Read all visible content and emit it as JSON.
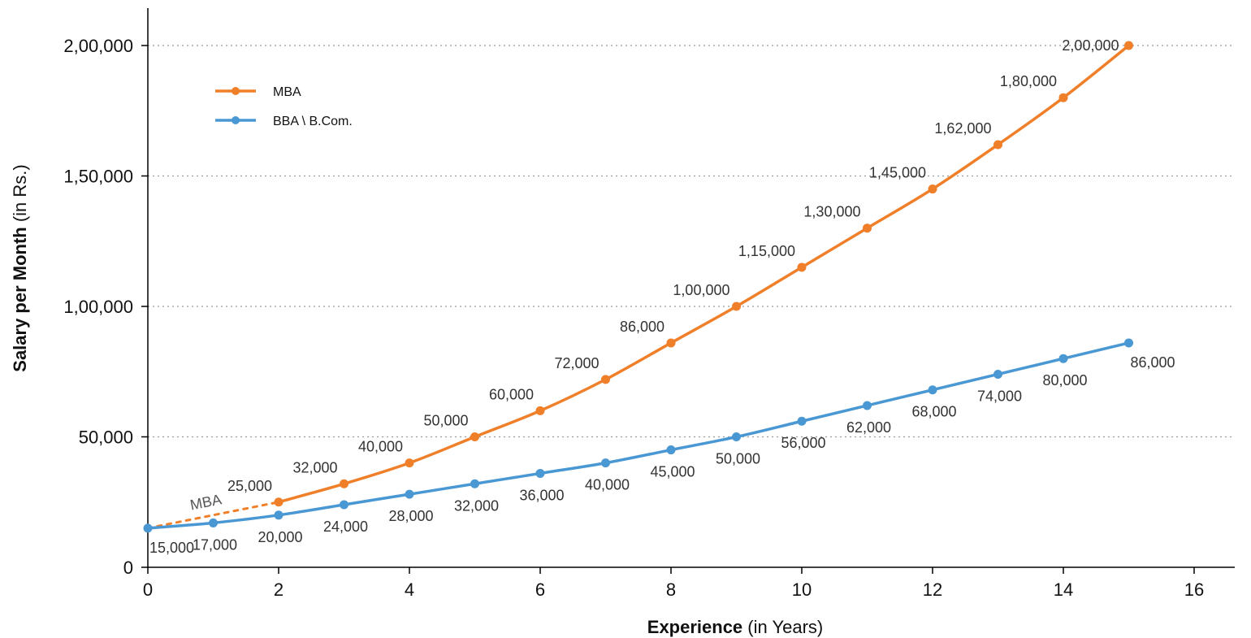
{
  "chart_data": {
    "type": "line",
    "xlabel": {
      "bold": "Experience",
      "rest": " (in Years)"
    },
    "ylabel": {
      "bold": "Salary per Month",
      "rest": " (in Rs.)"
    },
    "xlim": [
      0,
      16
    ],
    "ylim": [
      0,
      200000
    ],
    "x_ticks": [
      {
        "value": 0,
        "label": "0"
      },
      {
        "value": 2,
        "label": "2"
      },
      {
        "value": 4,
        "label": "4"
      },
      {
        "value": 6,
        "label": "6"
      },
      {
        "value": 8,
        "label": "8"
      },
      {
        "value": 10,
        "label": "10"
      },
      {
        "value": 12,
        "label": "12"
      },
      {
        "value": 14,
        "label": "14"
      },
      {
        "value": 16,
        "label": "16"
      }
    ],
    "y_ticks": [
      {
        "value": 0,
        "label": "0"
      },
      {
        "value": 50000,
        "label": "50,000"
      },
      {
        "value": 100000,
        "label": "1,00,000"
      },
      {
        "value": 150000,
        "label": "1,50,000"
      },
      {
        "value": 200000,
        "label": "2,00,000"
      }
    ],
    "grid": "horizontal dotted",
    "legend_position": "top-left",
    "series": [
      {
        "name": "MBA",
        "color": "#f07f2a",
        "label_side": "above",
        "points": [
          {
            "x": 2,
            "y": 25000,
            "label": "25,000"
          },
          {
            "x": 3,
            "y": 32000,
            "label": "32,000"
          },
          {
            "x": 4,
            "y": 40000,
            "label": "40,000"
          },
          {
            "x": 5,
            "y": 50000,
            "label": "50,000"
          },
          {
            "x": 6,
            "y": 60000,
            "label": "60,000"
          },
          {
            "x": 7,
            "y": 72000,
            "label": "72,000"
          },
          {
            "x": 8,
            "y": 86000,
            "label": "86,000"
          },
          {
            "x": 9,
            "y": 100000,
            "label": "1,00,000"
          },
          {
            "x": 10,
            "y": 115000,
            "label": "1,15,000"
          },
          {
            "x": 11,
            "y": 130000,
            "label": "1,30,000"
          },
          {
            "x": 12,
            "y": 145000,
            "label": "1,45,000"
          },
          {
            "x": 13,
            "y": 162000,
            "label": "1,62,000"
          },
          {
            "x": 14,
            "y": 180000,
            "label": "1,80,000"
          },
          {
            "x": 15,
            "y": 200000,
            "label": "2,00,000"
          }
        ]
      },
      {
        "name": "BBA \\ B.Com.",
        "color": "#4a98d3",
        "label_side": "below",
        "points": [
          {
            "x": 0,
            "y": 15000,
            "label": "15,000"
          },
          {
            "x": 1,
            "y": 17000,
            "label": "17,000"
          },
          {
            "x": 2,
            "y": 20000,
            "label": "20,000"
          },
          {
            "x": 3,
            "y": 24000,
            "label": "24,000"
          },
          {
            "x": 4,
            "y": 28000,
            "label": "28,000"
          },
          {
            "x": 5,
            "y": 32000,
            "label": "32,000"
          },
          {
            "x": 6,
            "y": 36000,
            "label": "36,000"
          },
          {
            "x": 7,
            "y": 40000,
            "label": "40,000"
          },
          {
            "x": 8,
            "y": 45000,
            "label": "45,000"
          },
          {
            "x": 9,
            "y": 50000,
            "label": "50,000"
          },
          {
            "x": 10,
            "y": 56000,
            "label": "56,000"
          },
          {
            "x": 11,
            "y": 62000,
            "label": "62,000"
          },
          {
            "x": 12,
            "y": 68000,
            "label": "68,000"
          },
          {
            "x": 13,
            "y": 74000,
            "label": "74,000"
          },
          {
            "x": 14,
            "y": 80000,
            "label": "80,000"
          },
          {
            "x": 15,
            "y": 86000,
            "label": "86,000"
          }
        ]
      }
    ],
    "annotations": [
      {
        "text": "MBA",
        "style": "dotted connector",
        "color": "#f07f2a",
        "from": {
          "x": 0,
          "y": 15000
        },
        "to": {
          "x": 2,
          "y": 25000
        }
      }
    ]
  }
}
